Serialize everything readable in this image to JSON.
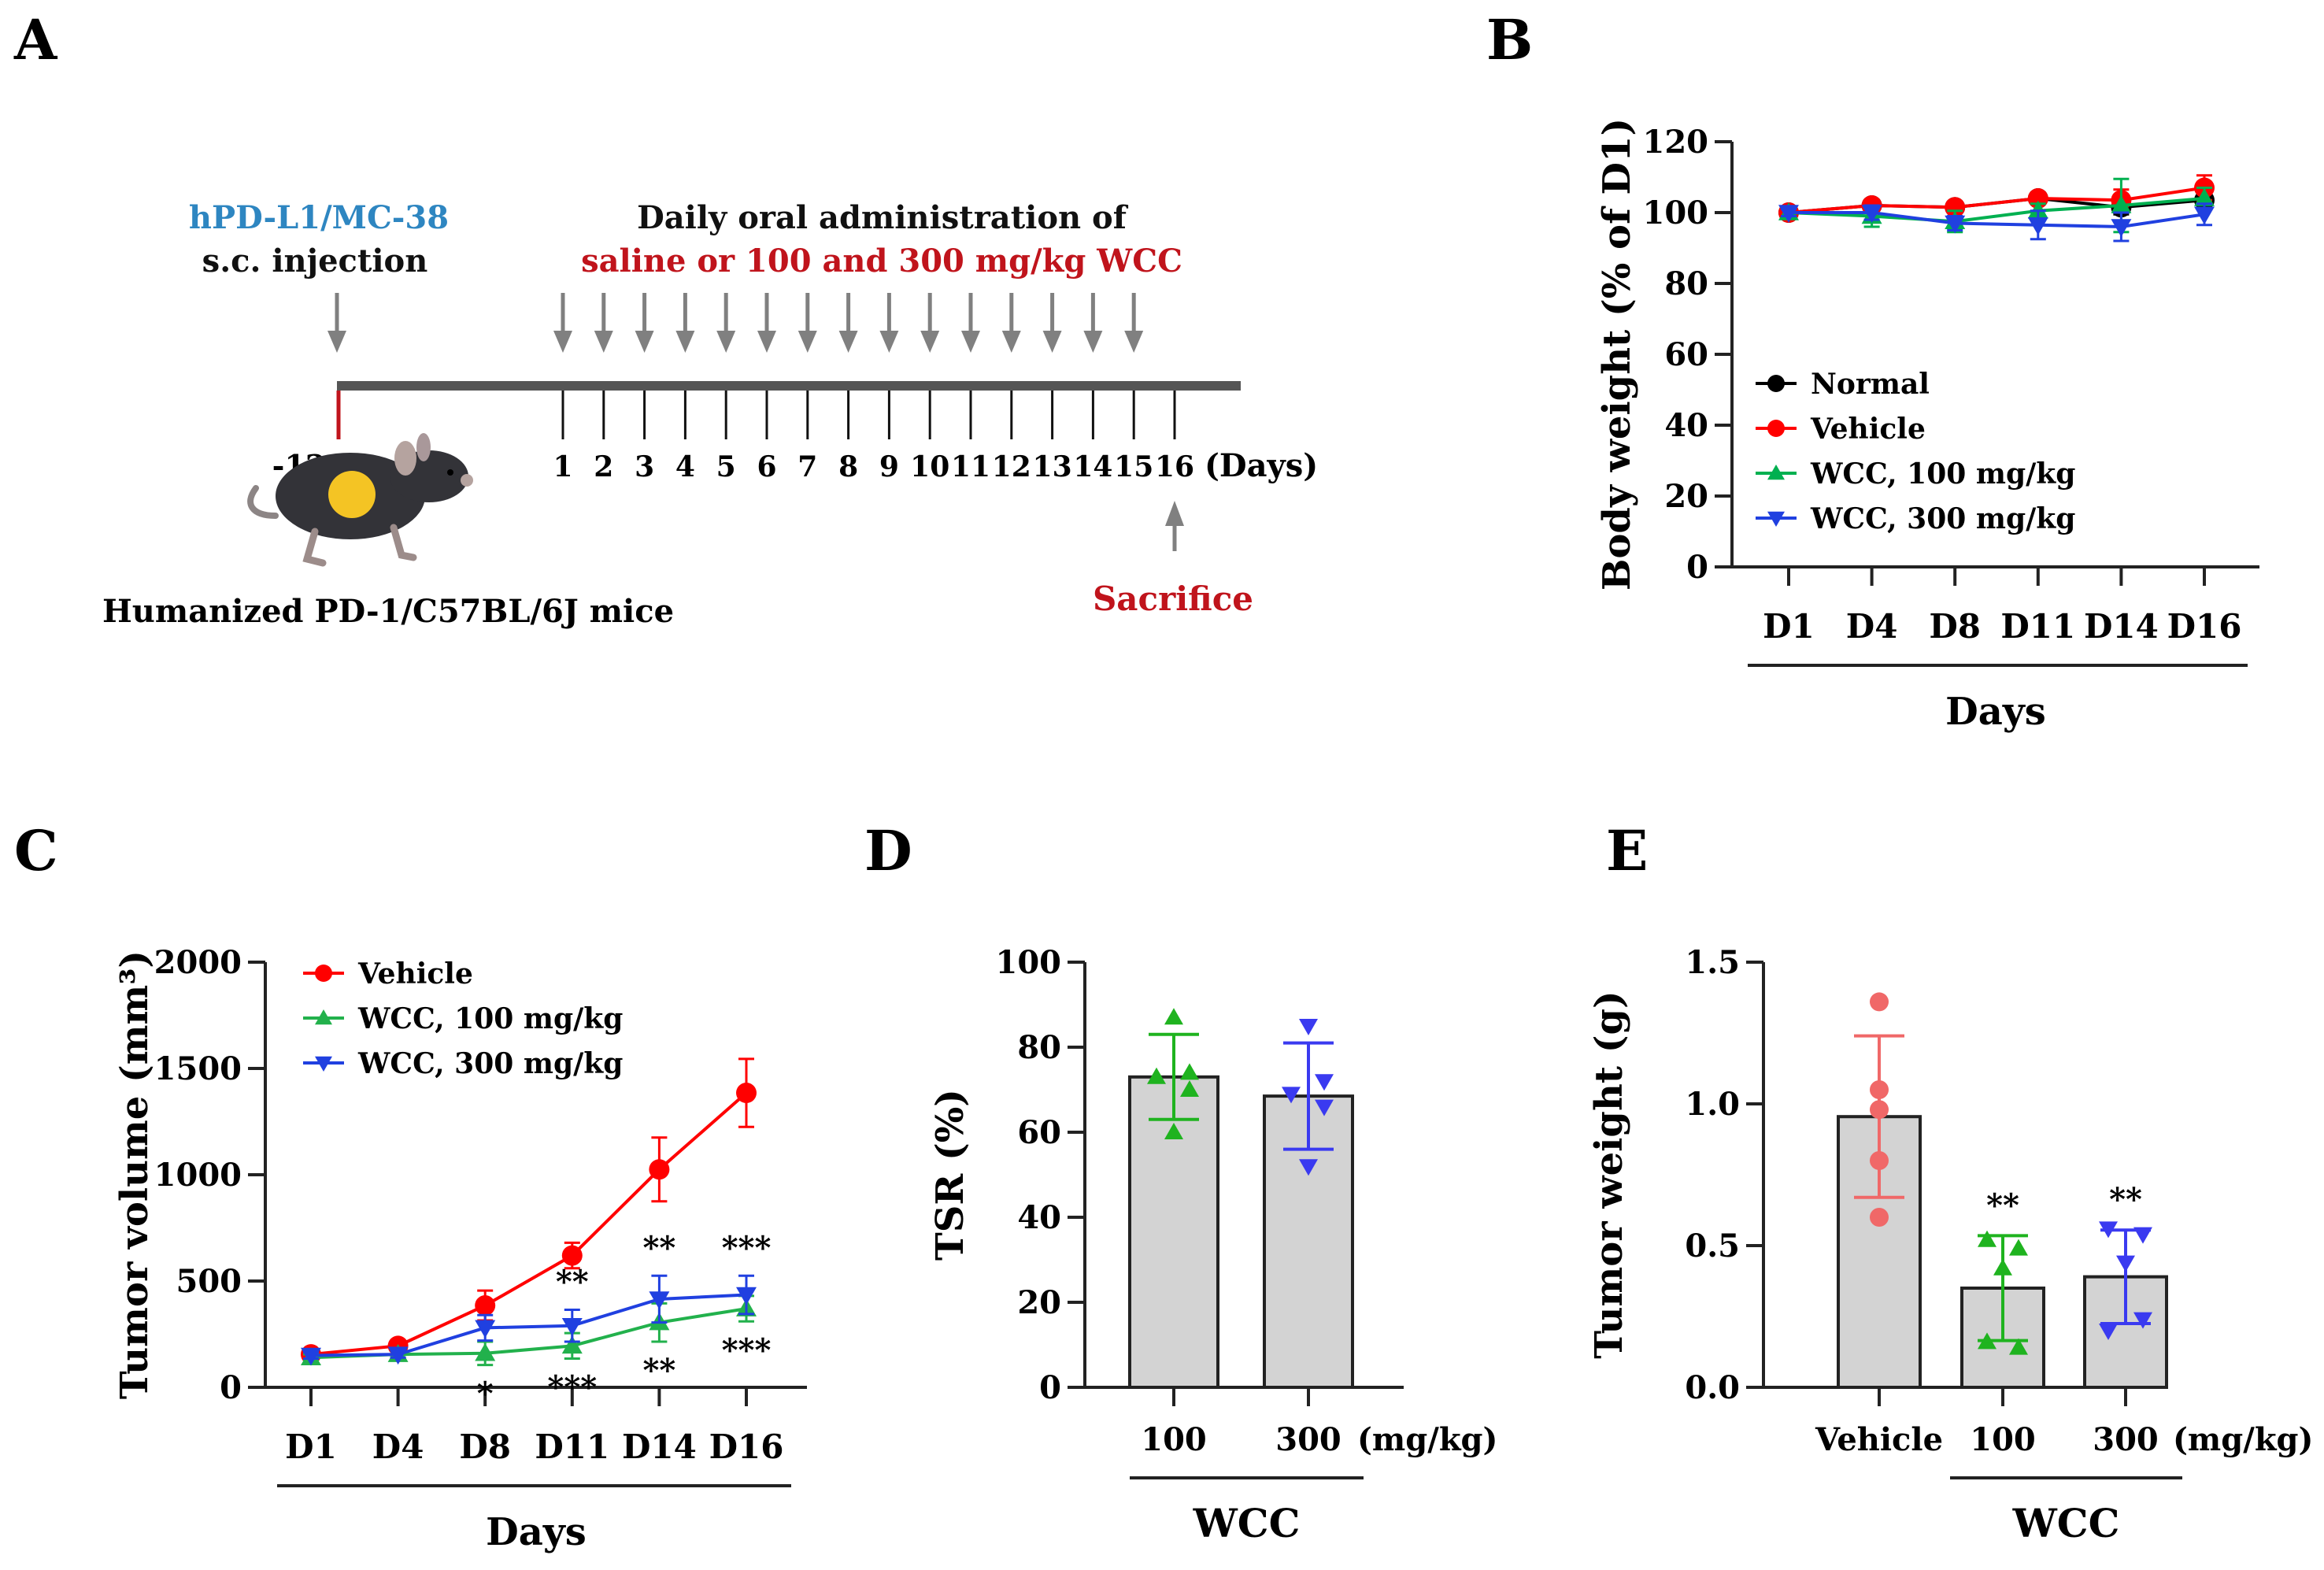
{
  "figure": {
    "panel_labels": [
      "A",
      "B",
      "C",
      "D",
      "E"
    ]
  },
  "schematic": {
    "injection_line1": "hPD-L1/MC-38",
    "injection_line2": "s.c. injection",
    "admin_line1": "Daily oral administration of",
    "admin_line2": "saline or 100 and 300 mg/kg WCC",
    "start_day": "-12",
    "day_labels": [
      "1",
      "2",
      "3",
      "4",
      "5",
      "6",
      "7",
      "8",
      "9",
      "10",
      "11",
      "12",
      "13",
      "14",
      "15",
      "16"
    ],
    "days_unit": "(Days)",
    "sacrifice_label": "Sacrifice",
    "mouse_label": "Humanized PD-1/C57BL/6J  mice",
    "dosing_arrow_count": 15,
    "colors": {
      "injection": "#2e86c1",
      "admin": "#c0141c",
      "sacrifice": "#c0141c",
      "arrow": "#808080",
      "timeline": "#555555",
      "start_tick": "#c0141c"
    }
  },
  "chart_data": [
    {
      "id": "B",
      "type": "line",
      "title": "",
      "xlabel": "Days",
      "ylabel": "Body weight (% of D1)",
      "categories": [
        "D1",
        "D4",
        "D8",
        "D11",
        "D14",
        "D16"
      ],
      "ylim": [
        0,
        120
      ],
      "yticks": [
        "0",
        "20",
        "40",
        "60",
        "80",
        "100",
        "120"
      ],
      "legend_position": "lower-left",
      "series": [
        {
          "name": "Normal",
          "color": "#000000",
          "marker": "circle",
          "values": [
            100,
            102,
            101.5,
            104,
            101.5,
            103.5
          ],
          "err": [
            1,
            1.5,
            1.5,
            1.5,
            2,
            2
          ]
        },
        {
          "name": "Vehicle",
          "color": "#ff0000",
          "marker": "circle",
          "values": [
            100,
            102,
            101.5,
            104,
            103.5,
            107
          ],
          "err": [
            1,
            1.5,
            1.5,
            1.5,
            3,
            3.5
          ]
        },
        {
          "name": "WCC, 100 mg/kg",
          "color": "#00b050",
          "marker": "triangle-up",
          "values": [
            100,
            99,
            97.5,
            100.5,
            102,
            104
          ],
          "err": [
            1,
            3,
            3,
            2,
            7.5,
            3
          ]
        },
        {
          "name": "WCC, 300 mg/kg",
          "color": "#2040e0",
          "marker": "triangle-down",
          "values": [
            100,
            100,
            97,
            96.5,
            96,
            99.5
          ],
          "err": [
            1,
            2,
            2,
            4,
            4,
            3
          ]
        }
      ]
    },
    {
      "id": "C",
      "type": "line",
      "title": "",
      "xlabel": "Days",
      "ylabel": "Tumor volume (mm³)",
      "categories": [
        "D1",
        "D4",
        "D8",
        "D11",
        "D14",
        "D16"
      ],
      "ylim": [
        0,
        2000
      ],
      "yticks": [
        "0",
        "500",
        "1000",
        "1500",
        "2000"
      ],
      "legend_position": "top-left",
      "series": [
        {
          "name": "Vehicle",
          "color": "#ff0000",
          "marker": "circle",
          "values": [
            155,
            195,
            385,
            620,
            1025,
            1385
          ],
          "err": [
            15,
            15,
            70,
            60,
            150,
            160
          ]
        },
        {
          "name": "WCC, 100 mg/kg",
          "color": "#22b14c",
          "marker": "triangle-up",
          "values": [
            140,
            155,
            160,
            195,
            305,
            370
          ],
          "err": [
            15,
            15,
            55,
            60,
            90,
            60
          ]
        },
        {
          "name": "WCC, 300 mg/kg",
          "color": "#2040e0",
          "marker": "triangle-down",
          "values": [
            150,
            155,
            280,
            290,
            415,
            435
          ],
          "err": [
            15,
            15,
            60,
            75,
            110,
            90
          ]
        }
      ],
      "annotations": [
        {
          "category": "D8",
          "series": "WCC, 100 mg/kg",
          "text": "*",
          "position": "below"
        },
        {
          "category": "D11",
          "series": "WCC, 300 mg/kg",
          "text": "**",
          "position": "above"
        },
        {
          "category": "D11",
          "series": "WCC, 100 mg/kg",
          "text": "***",
          "position": "below"
        },
        {
          "category": "D14",
          "series": "WCC, 300 mg/kg",
          "text": "**",
          "position": "above"
        },
        {
          "category": "D14",
          "series": "WCC, 100 mg/kg",
          "text": "**",
          "position": "below"
        },
        {
          "category": "D16",
          "series": "WCC, 300 mg/kg",
          "text": "***",
          "position": "above"
        },
        {
          "category": "D16",
          "series": "WCC, 100 mg/kg",
          "text": "***",
          "position": "below"
        }
      ]
    },
    {
      "id": "D",
      "type": "bar",
      "title": "",
      "xlabel": "WCC",
      "x_unit": "(mg/kg)",
      "ylabel": "TSR (%)",
      "categories": [
        "100",
        "300"
      ],
      "values": [
        73,
        68.5
      ],
      "err": [
        10,
        12.5
      ],
      "ylim": [
        0,
        100
      ],
      "yticks": [
        "0",
        "20",
        "40",
        "60",
        "80",
        "100"
      ],
      "bar_color": "#d3d3d3",
      "points": [
        {
          "category": "100",
          "color": "#1fb31f",
          "marker": "triangle-up",
          "values": [
            87,
            73,
            74,
            70,
            60
          ]
        },
        {
          "category": "300",
          "color": "#3a3af0",
          "marker": "triangle-down",
          "values": [
            85,
            69,
            72,
            66,
            52
          ]
        }
      ]
    },
    {
      "id": "E",
      "type": "bar",
      "title": "",
      "xlabel": "WCC",
      "x_unit": "(mg/kg)",
      "ylabel": "Tumor weight (g)",
      "categories": [
        "Vehicle",
        "100",
        "300"
      ],
      "values": [
        0.955,
        0.35,
        0.39
      ],
      "err": [
        0.285,
        0.185,
        0.165
      ],
      "ylim": [
        0,
        1.5
      ],
      "yticks": [
        "0.0",
        "0.5",
        "1.0",
        "1.5"
      ],
      "bar_color": "#d3d3d3",
      "significance": [
        "",
        "**",
        "**"
      ],
      "points": [
        {
          "category": "Vehicle",
          "color": "#f06868",
          "marker": "circle",
          "values": [
            1.36,
            1.05,
            0.98,
            0.8,
            0.6
          ]
        },
        {
          "category": "100",
          "color": "#1fb31f",
          "marker": "triangle-up",
          "values": [
            0.52,
            0.49,
            0.42,
            0.16,
            0.14
          ]
        },
        {
          "category": "300",
          "color": "#3a3af0",
          "marker": "triangle-down",
          "values": [
            0.56,
            0.54,
            0.44,
            0.24,
            0.2
          ]
        }
      ]
    }
  ]
}
